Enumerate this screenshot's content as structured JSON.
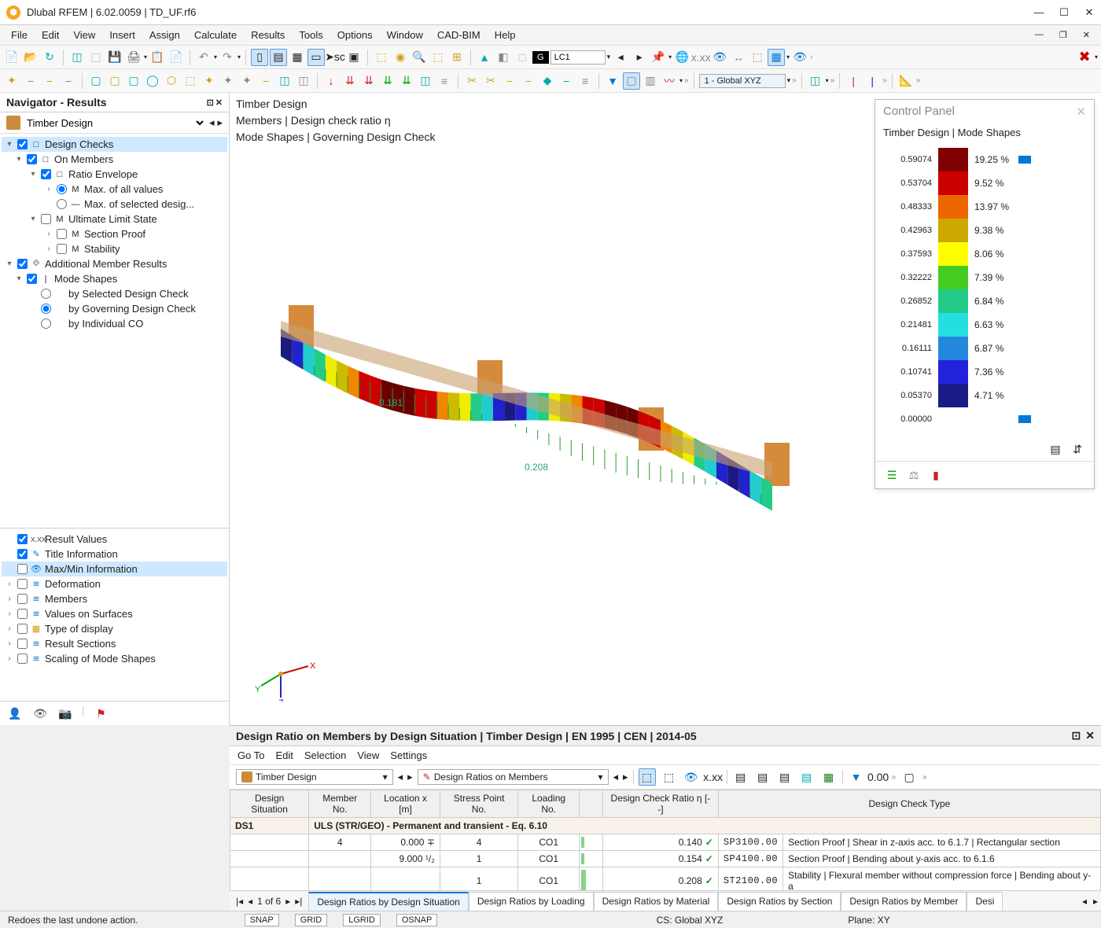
{
  "title": "Dlubal RFEM | 6.02.0059 | TD_UF.rf6",
  "menus": [
    "File",
    "Edit",
    "View",
    "Insert",
    "Assign",
    "Calculate",
    "Results",
    "Tools",
    "Options",
    "Window",
    "CAD-BIM",
    "Help"
  ],
  "lc": {
    "label": "G",
    "value": "LC1"
  },
  "coord_system": "1 - Global XYZ",
  "navigator": {
    "title": "Navigator - Results",
    "group": "Timber Design",
    "tree": [
      {
        "d": 0,
        "exp": "▾",
        "chk": true,
        "ico": "□",
        "label": "Design Checks",
        "sel": true
      },
      {
        "d": 1,
        "exp": "▾",
        "chk": true,
        "ico": "□",
        "label": "On Members"
      },
      {
        "d": 2,
        "exp": "▾",
        "chk": true,
        "ico": "□",
        "label": "Ratio Envelope"
      },
      {
        "d": 3,
        "exp": "›",
        "radio": true,
        "rchk": true,
        "ico": "M",
        "label": "Max. of all values"
      },
      {
        "d": 3,
        "exp": "",
        "radio": true,
        "rchk": false,
        "ico": "—",
        "label": "Max. of selected desig..."
      },
      {
        "d": 2,
        "exp": "▾",
        "chk": false,
        "ico": "M",
        "label": "Ultimate Limit State"
      },
      {
        "d": 3,
        "exp": "›",
        "chk": false,
        "ico": "M",
        "label": "Section Proof"
      },
      {
        "d": 3,
        "exp": "›",
        "chk": false,
        "ico": "M",
        "label": "Stability"
      },
      {
        "d": 0,
        "exp": "▾",
        "chk": true,
        "ico": "⟐",
        "label": "Additional Member Results"
      },
      {
        "d": 1,
        "exp": "▾",
        "chk": true,
        "ico": "|",
        "label": "Mode Shapes"
      },
      {
        "d": 2,
        "exp": "",
        "radio": true,
        "rchk": false,
        "ico": "",
        "label": "by Selected Design Check"
      },
      {
        "d": 2,
        "exp": "",
        "radio": true,
        "rchk": true,
        "ico": "",
        "label": "by Governing Design Check"
      },
      {
        "d": 2,
        "exp": "",
        "radio": true,
        "rchk": false,
        "ico": "",
        "label": "by Individual CO"
      }
    ],
    "bottom": [
      {
        "exp": "",
        "chk": true,
        "label": "Result Values",
        "ico": "x.xx",
        "color": "#555"
      },
      {
        "exp": "",
        "chk": true,
        "label": "Title Information",
        "ico": "✎",
        "color": "#0078d4"
      },
      {
        "exp": "",
        "chk": false,
        "label": "Max/Min Information",
        "ico": "👁",
        "color": "#0078d4",
        "sel": true
      },
      {
        "exp": "›",
        "chk": false,
        "label": "Deformation",
        "ico": "≋",
        "color": "#0078d4"
      },
      {
        "exp": "›",
        "chk": false,
        "label": "Members",
        "ico": "≋",
        "color": "#0078d4"
      },
      {
        "exp": "›",
        "chk": false,
        "label": "Values on Surfaces",
        "ico": "≋",
        "color": "#0078d4"
      },
      {
        "exp": "›",
        "chk": false,
        "label": "Type of display",
        "ico": "▦",
        "color": "#d49b0a"
      },
      {
        "exp": "›",
        "chk": false,
        "label": "Result Sections",
        "ico": "≋",
        "color": "#0078d4"
      },
      {
        "exp": "›",
        "chk": false,
        "label": "Scaling of Mode Shapes",
        "ico": "≋",
        "color": "#0078d4"
      }
    ]
  },
  "viewport": {
    "lines": [
      "Timber Design",
      "Members | Design check ratio η",
      "Mode Shapes | Governing Design Check"
    ],
    "value_labels": [
      "0.181",
      "0.208"
    ],
    "beam_colors": [
      "#6b0000",
      "#cc0000",
      "#ee8800",
      "#ccbb00",
      "#eeee00",
      "#55cc22",
      "#22cc88",
      "#22cccc",
      "#2277dd",
      "#2222cc",
      "#1a1a80"
    ],
    "support_color": "#d68a3c"
  },
  "control_panel": {
    "title": "Control Panel",
    "subtitle": "Timber Design | Mode Shapes",
    "legend": [
      {
        "val": "0.59074",
        "color": "#800000",
        "pct": "19.25 %"
      },
      {
        "val": "0.53704",
        "color": "#cc0000",
        "pct": "9.52 %"
      },
      {
        "val": "0.48333",
        "color": "#ee6600",
        "pct": "13.97 %"
      },
      {
        "val": "0.42963",
        "color": "#cca800",
        "pct": "9.38 %"
      },
      {
        "val": "0.37593",
        "color": "#ffff00",
        "pct": "8.06 %"
      },
      {
        "val": "0.32222",
        "color": "#44cc22",
        "pct": "7.39 %"
      },
      {
        "val": "0.26852",
        "color": "#22cc88",
        "pct": "6.84 %"
      },
      {
        "val": "0.21481",
        "color": "#22e0e0",
        "pct": "6.63 %"
      },
      {
        "val": "0.16111",
        "color": "#2288dd",
        "pct": "6.87 %"
      },
      {
        "val": "0.10741",
        "color": "#2222dd",
        "pct": "7.36 %"
      },
      {
        "val": "0.05370",
        "color": "#1a1a88",
        "pct": "4.71 %"
      },
      {
        "val": "0.00000",
        "color": "",
        "pct": ""
      }
    ]
  },
  "bottom": {
    "title": "Design Ratio on Members by Design Situation | Timber Design | EN 1995 | CEN | 2014-05",
    "menus": [
      "Go To",
      "Edit",
      "Selection",
      "View",
      "Settings"
    ],
    "select1": "Timber Design",
    "select2": "Design Ratios on Members",
    "columns": [
      "Design Situation",
      "Member No.",
      "Location x [m]",
      "Stress Point No.",
      "Loading No.",
      "Design Check Ratio η [--]",
      "Design Check Type",
      ""
    ],
    "group_label": "DS1",
    "group_text": "ULS (STR/GEO) - Permanent and transient - Eq. 6.10",
    "rows": [
      {
        "member": "4",
        "x": "0.000 ∓",
        "sp": "4",
        "load": "CO1",
        "ratio": "0.140",
        "bar": 0.14,
        "code": "SP3100.00",
        "desc": "Section Proof | Shear in z-axis acc. to 6.1.7 | Rectangular section"
      },
      {
        "member": "",
        "x": "9.000 ¹/₂",
        "sp": "1",
        "load": "CO1",
        "ratio": "0.154",
        "bar": 0.154,
        "code": "SP4100.00",
        "desc": "Section Proof | Bending about y-axis acc. to 6.1.6"
      },
      {
        "member": "",
        "x": "",
        "sp": "1",
        "load": "CO1",
        "ratio": "0.208",
        "bar": 0.208,
        "code": "ST2100.00",
        "desc": "Stability | Flexural member without compression force | Bending about y-a"
      }
    ],
    "page": "1 of 6",
    "tabs": [
      "Design Ratios by Design Situation",
      "Design Ratios by Loading",
      "Design Ratios by Material",
      "Design Ratios by Section",
      "Design Ratios by Member",
      "Desi"
    ]
  },
  "status": {
    "hint": "Redoes the last undone action.",
    "snaps": [
      "SNAP",
      "GRID",
      "LGRID",
      "OSNAP"
    ],
    "cs": "CS: Global XYZ",
    "plane": "Plane: XY"
  }
}
